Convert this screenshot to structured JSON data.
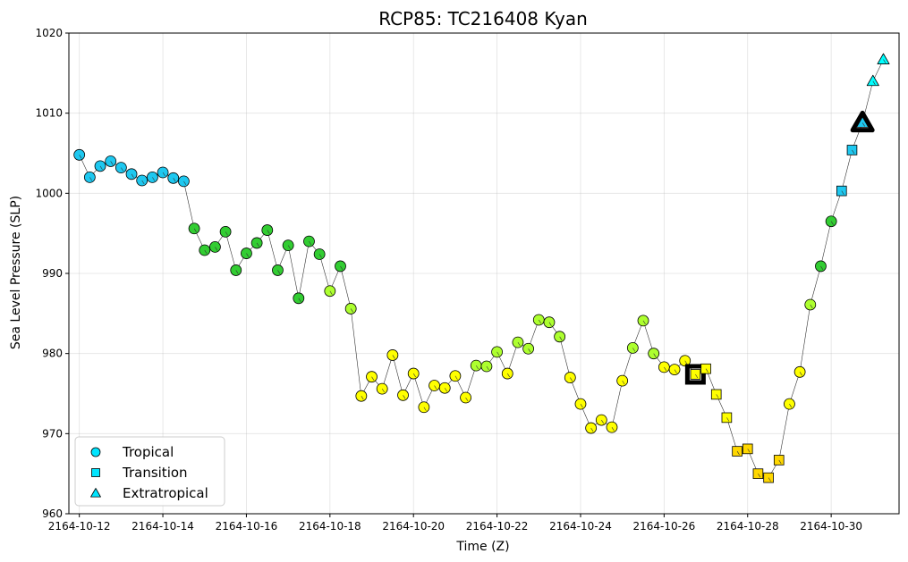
{
  "chart_data": {
    "type": "scatter",
    "title": "RCP85: TC216408 Kyan",
    "xlabel": "Time (Z)",
    "ylabel": "Sea Level Pressure (SLP)",
    "ylim": [
      960,
      1020
    ],
    "xlim": [
      "2164-10-11 18:00",
      "2164-10-31 15:00"
    ],
    "x_ticks": [
      "2164-10-12",
      "2164-10-14",
      "2164-10-16",
      "2164-10-18",
      "2164-10-20",
      "2164-10-22",
      "2164-10-24",
      "2164-10-26",
      "2164-10-28",
      "2164-10-30"
    ],
    "y_ticks": [
      960,
      970,
      980,
      990,
      1000,
      1010,
      1020
    ],
    "grid": true,
    "legend_position": "lower-left",
    "legend": [
      {
        "label": "Tropical",
        "marker": "circle",
        "color": "#00e5ff"
      },
      {
        "label": "Transition",
        "marker": "square",
        "color": "#00e5ff"
      },
      {
        "label": "Extratropical",
        "marker": "triangle",
        "color": "#00e5ff"
      }
    ],
    "line_color": "#333333",
    "highlight_color": "#000000",
    "colors": {
      "td": "#1ec8f0",
      "ts": "#32cd32",
      "c1": "#adff2f",
      "c2": "#ffff00",
      "c3": "#ffd700",
      "et": "#00ffff"
    },
    "points": [
      {
        "time": "2164-10-12 00:00",
        "slp": 1004.8,
        "marker": "circle",
        "color": "#1ec8f0"
      },
      {
        "time": "2164-10-12 06:00",
        "slp": 1002.0,
        "marker": "circle",
        "color": "#1ec8f0"
      },
      {
        "time": "2164-10-12 12:00",
        "slp": 1003.4,
        "marker": "circle",
        "color": "#1ec8f0"
      },
      {
        "time": "2164-10-12 18:00",
        "slp": 1004.0,
        "marker": "circle",
        "color": "#1ec8f0"
      },
      {
        "time": "2164-10-13 00:00",
        "slp": 1003.2,
        "marker": "circle",
        "color": "#1ec8f0"
      },
      {
        "time": "2164-10-13 06:00",
        "slp": 1002.4,
        "marker": "circle",
        "color": "#1ec8f0"
      },
      {
        "time": "2164-10-13 12:00",
        "slp": 1001.6,
        "marker": "circle",
        "color": "#1ec8f0"
      },
      {
        "time": "2164-10-13 18:00",
        "slp": 1002.0,
        "marker": "circle",
        "color": "#1ec8f0"
      },
      {
        "time": "2164-10-14 00:00",
        "slp": 1002.6,
        "marker": "circle",
        "color": "#1ec8f0"
      },
      {
        "time": "2164-10-14 06:00",
        "slp": 1001.9,
        "marker": "circle",
        "color": "#1ec8f0"
      },
      {
        "time": "2164-10-14 12:00",
        "slp": 1001.5,
        "marker": "circle",
        "color": "#1ec8f0"
      },
      {
        "time": "2164-10-14 18:00",
        "slp": 995.6,
        "marker": "circle",
        "color": "#32cd32"
      },
      {
        "time": "2164-10-15 00:00",
        "slp": 992.9,
        "marker": "circle",
        "color": "#32cd32"
      },
      {
        "time": "2164-10-15 06:00",
        "slp": 993.3,
        "marker": "circle",
        "color": "#32cd32"
      },
      {
        "time": "2164-10-15 12:00",
        "slp": 995.2,
        "marker": "circle",
        "color": "#32cd32"
      },
      {
        "time": "2164-10-15 18:00",
        "slp": 990.4,
        "marker": "circle",
        "color": "#32cd32"
      },
      {
        "time": "2164-10-16 00:00",
        "slp": 992.5,
        "marker": "circle",
        "color": "#32cd32"
      },
      {
        "time": "2164-10-16 06:00",
        "slp": 993.8,
        "marker": "circle",
        "color": "#32cd32"
      },
      {
        "time": "2164-10-16 12:00",
        "slp": 995.4,
        "marker": "circle",
        "color": "#32cd32"
      },
      {
        "time": "2164-10-16 18:00",
        "slp": 990.4,
        "marker": "circle",
        "color": "#32cd32"
      },
      {
        "time": "2164-10-17 00:00",
        "slp": 993.5,
        "marker": "circle",
        "color": "#32cd32"
      },
      {
        "time": "2164-10-17 06:00",
        "slp": 986.9,
        "marker": "circle",
        "color": "#32cd32"
      },
      {
        "time": "2164-10-17 12:00",
        "slp": 994.0,
        "marker": "circle",
        "color": "#32cd32"
      },
      {
        "time": "2164-10-17 18:00",
        "slp": 992.4,
        "marker": "circle",
        "color": "#32cd32"
      },
      {
        "time": "2164-10-18 00:00",
        "slp": 987.8,
        "marker": "circle",
        "color": "#adff2f"
      },
      {
        "time": "2164-10-18 06:00",
        "slp": 990.9,
        "marker": "circle",
        "color": "#32cd32"
      },
      {
        "time": "2164-10-18 12:00",
        "slp": 985.6,
        "marker": "circle",
        "color": "#adff2f"
      },
      {
        "time": "2164-10-18 18:00",
        "slp": 974.7,
        "marker": "circle",
        "color": "#ffff00"
      },
      {
        "time": "2164-10-19 00:00",
        "slp": 977.1,
        "marker": "circle",
        "color": "#ffff00"
      },
      {
        "time": "2164-10-19 06:00",
        "slp": 975.6,
        "marker": "circle",
        "color": "#ffff00"
      },
      {
        "time": "2164-10-19 12:00",
        "slp": 979.8,
        "marker": "circle",
        "color": "#ffff00"
      },
      {
        "time": "2164-10-19 18:00",
        "slp": 974.8,
        "marker": "circle",
        "color": "#ffff00"
      },
      {
        "time": "2164-10-20 00:00",
        "slp": 977.5,
        "marker": "circle",
        "color": "#ffff00"
      },
      {
        "time": "2164-10-20 06:00",
        "slp": 973.3,
        "marker": "circle",
        "color": "#ffff00"
      },
      {
        "time": "2164-10-20 12:00",
        "slp": 976.0,
        "marker": "circle",
        "color": "#ffff00"
      },
      {
        "time": "2164-10-20 18:00",
        "slp": 975.7,
        "marker": "circle",
        "color": "#ffff00"
      },
      {
        "time": "2164-10-21 00:00",
        "slp": 977.2,
        "marker": "circle",
        "color": "#ffff00"
      },
      {
        "time": "2164-10-21 06:00",
        "slp": 974.5,
        "marker": "circle",
        "color": "#ffff00"
      },
      {
        "time": "2164-10-21 12:00",
        "slp": 978.5,
        "marker": "circle",
        "color": "#adff2f"
      },
      {
        "time": "2164-10-21 18:00",
        "slp": 978.4,
        "marker": "circle",
        "color": "#adff2f"
      },
      {
        "time": "2164-10-22 00:00",
        "slp": 980.2,
        "marker": "circle",
        "color": "#adff2f"
      },
      {
        "time": "2164-10-22 06:00",
        "slp": 977.5,
        "marker": "circle",
        "color": "#ffff00"
      },
      {
        "time": "2164-10-22 12:00",
        "slp": 981.4,
        "marker": "circle",
        "color": "#adff2f"
      },
      {
        "time": "2164-10-22 18:00",
        "slp": 980.6,
        "marker": "circle",
        "color": "#adff2f"
      },
      {
        "time": "2164-10-23 00:00",
        "slp": 984.2,
        "marker": "circle",
        "color": "#adff2f"
      },
      {
        "time": "2164-10-23 06:00",
        "slp": 983.9,
        "marker": "circle",
        "color": "#adff2f"
      },
      {
        "time": "2164-10-23 12:00",
        "slp": 982.1,
        "marker": "circle",
        "color": "#adff2f"
      },
      {
        "time": "2164-10-23 18:00",
        "slp": 977.0,
        "marker": "circle",
        "color": "#ffff00"
      },
      {
        "time": "2164-10-24 00:00",
        "slp": 973.7,
        "marker": "circle",
        "color": "#ffff00"
      },
      {
        "time": "2164-10-24 06:00",
        "slp": 970.7,
        "marker": "circle",
        "color": "#ffff00"
      },
      {
        "time": "2164-10-24 12:00",
        "slp": 971.7,
        "marker": "circle",
        "color": "#ffff00"
      },
      {
        "time": "2164-10-24 18:00",
        "slp": 970.8,
        "marker": "circle",
        "color": "#ffff00"
      },
      {
        "time": "2164-10-25 00:00",
        "slp": 976.6,
        "marker": "circle",
        "color": "#ffff00"
      },
      {
        "time": "2164-10-25 06:00",
        "slp": 980.7,
        "marker": "circle",
        "color": "#adff2f"
      },
      {
        "time": "2164-10-25 12:00",
        "slp": 984.1,
        "marker": "circle",
        "color": "#adff2f"
      },
      {
        "time": "2164-10-25 18:00",
        "slp": 980.0,
        "marker": "circle",
        "color": "#adff2f"
      },
      {
        "time": "2164-10-26 00:00",
        "slp": 978.3,
        "marker": "circle",
        "color": "#ffff00"
      },
      {
        "time": "2164-10-26 06:00",
        "slp": 978.0,
        "marker": "circle",
        "color": "#ffff00"
      },
      {
        "time": "2164-10-26 12:00",
        "slp": 979.1,
        "marker": "circle",
        "color": "#ffff00"
      },
      {
        "time": "2164-10-26 18:00",
        "slp": 977.4,
        "marker": "square",
        "color": "#ffff00",
        "highlight": true
      },
      {
        "time": "2164-10-27 00:00",
        "slp": 978.1,
        "marker": "square",
        "color": "#ffff00"
      },
      {
        "time": "2164-10-27 06:00",
        "slp": 974.9,
        "marker": "square",
        "color": "#ffff00"
      },
      {
        "time": "2164-10-27 12:00",
        "slp": 972.0,
        "marker": "square",
        "color": "#ffff00"
      },
      {
        "time": "2164-10-27 18:00",
        "slp": 967.8,
        "marker": "square",
        "color": "#ffd700"
      },
      {
        "time": "2164-10-28 00:00",
        "slp": 968.1,
        "marker": "square",
        "color": "#ffd700"
      },
      {
        "time": "2164-10-28 06:00",
        "slp": 965.0,
        "marker": "square",
        "color": "#ffd700"
      },
      {
        "time": "2164-10-28 12:00",
        "slp": 964.5,
        "marker": "square",
        "color": "#ffd700"
      },
      {
        "time": "2164-10-28 18:00",
        "slp": 966.7,
        "marker": "square",
        "color": "#ffd700"
      },
      {
        "time": "2164-10-29 00:00",
        "slp": 973.7,
        "marker": "circle",
        "color": "#ffff00"
      },
      {
        "time": "2164-10-29 06:00",
        "slp": 977.7,
        "marker": "circle",
        "color": "#ffff00"
      },
      {
        "time": "2164-10-29 12:00",
        "slp": 986.1,
        "marker": "circle",
        "color": "#adff2f"
      },
      {
        "time": "2164-10-29 18:00",
        "slp": 990.9,
        "marker": "circle",
        "color": "#32cd32"
      },
      {
        "time": "2164-10-30 00:00",
        "slp": 996.5,
        "marker": "circle",
        "color": "#32cd32"
      },
      {
        "time": "2164-10-30 06:00",
        "slp": 1000.3,
        "marker": "square",
        "color": "#1ec8f0"
      },
      {
        "time": "2164-10-30 12:00",
        "slp": 1005.4,
        "marker": "square",
        "color": "#1ec8f0"
      },
      {
        "time": "2164-10-30 18:00",
        "slp": 1008.8,
        "marker": "triangle",
        "color": "#1ec8f0",
        "highlight": true
      },
      {
        "time": "2164-10-31 00:00",
        "slp": 1014.0,
        "marker": "triangle",
        "color": "#00ffff"
      },
      {
        "time": "2164-10-31 06:00",
        "slp": 1016.7,
        "marker": "triangle",
        "color": "#00ffff"
      }
    ]
  }
}
